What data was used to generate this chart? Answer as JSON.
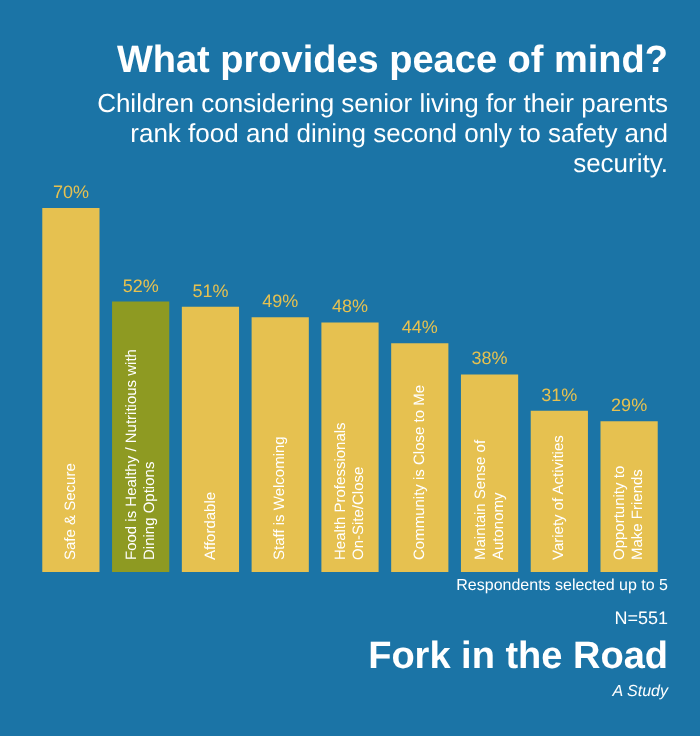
{
  "chart_data": {
    "type": "bar",
    "title": "What provides peace of mind?",
    "subtitle": "Children considering senior living for their parents rank food and dining second only to safety and security.",
    "categories": [
      "Safe & Secure",
      "Food is Healthy / Nutritious with Dining Options",
      "Affordable",
      "Staff is Welcoming",
      "Health Professionals On-Site/Close",
      "Community is Close to Me",
      "Maintain Sense of Autonomy",
      "Variety of Activities",
      "Opportunity to Make Friends"
    ],
    "values": [
      70,
      52,
      51,
      49,
      48,
      44,
      38,
      31,
      29
    ],
    "value_labels": [
      "70%",
      "52%",
      "51%",
      "49%",
      "48%",
      "44%",
      "38%",
      "31%",
      "29%"
    ],
    "colors": [
      "#e6c150",
      "#8e9a22",
      "#e6c150",
      "#e6c150",
      "#e6c150",
      "#e6c150",
      "#e6c150",
      "#e6c150",
      "#e6c150"
    ],
    "legend": false,
    "annotations": [
      "Respondents selected up to 5",
      "N=551",
      "Fork in the Road",
      "A Study"
    ]
  }
}
